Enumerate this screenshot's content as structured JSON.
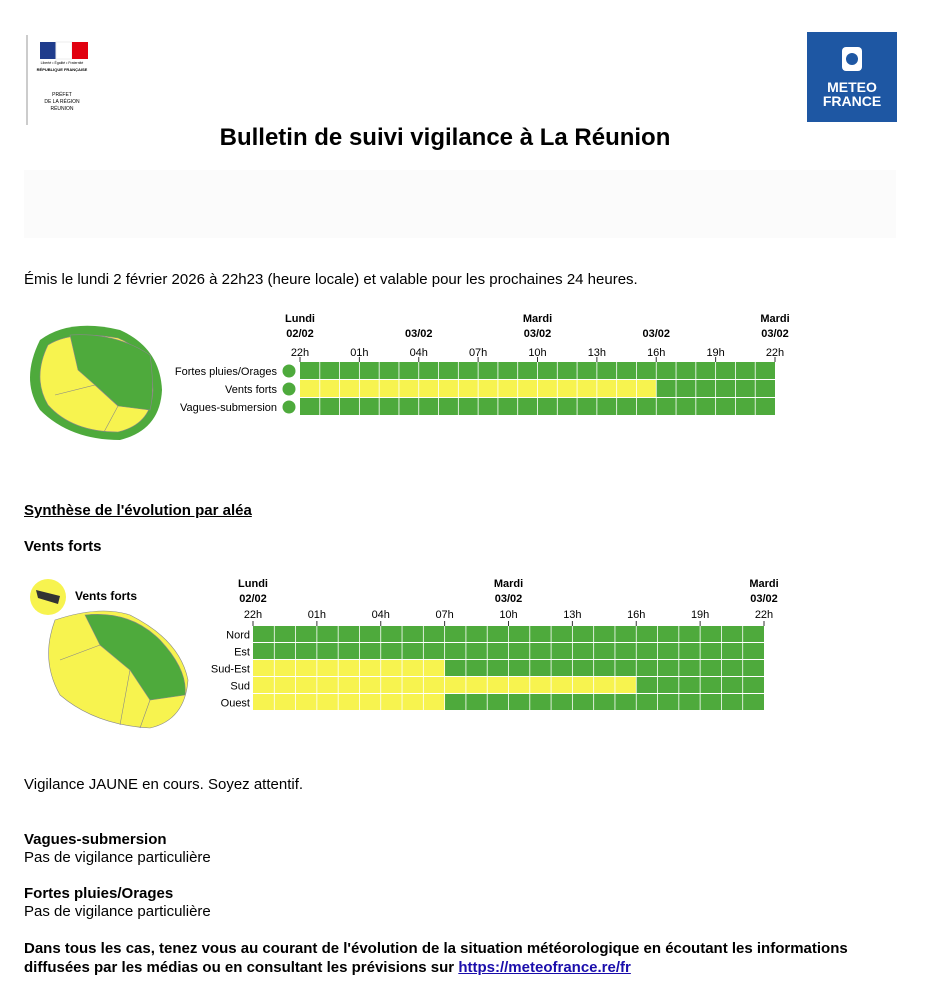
{
  "header": {
    "prefet": {
      "motto": "Liberté • Égalité • Fraternité",
      "republic": "RÉPUBLIQUE FRANÇAISE",
      "lines": [
        "PRÉFET",
        "DE LA RÉGION",
        "RÉUNION"
      ]
    },
    "logo": [
      "METEO",
      "FRANCE"
    ],
    "title": "Bulletin de suivi vigilance à La Réunion"
  },
  "issued": "Émis le lundi 2 février 2026 à 22h23 (heure locale) et valable pour les prochaines 24 heures.",
  "overview": {
    "hours": [
      "22h",
      "01h",
      "04h",
      "07h",
      "10h",
      "13h",
      "16h",
      "19h",
      "22h"
    ],
    "date_labels": [
      [
        "Lundi",
        "02/02"
      ],
      null,
      [
        "03/02"
      ],
      null,
      [
        "Mardi",
        "03/02"
      ],
      null,
      [
        "03/02"
      ],
      null,
      [
        "Mardi",
        "03/02"
      ]
    ],
    "total_cells": 24,
    "rows": [
      {
        "name": "Fortes pluies/Orages",
        "segments": [
          {
            "color": "#4eaa3c",
            "cells": 24
          }
        ]
      },
      {
        "name": "Vents forts",
        "segments": [
          {
            "color": "#f7f34f",
            "cells": 18
          },
          {
            "color": "#4eaa3c",
            "cells": 6
          }
        ]
      },
      {
        "name": "Vagues-submersion",
        "segments": [
          {
            "color": "#4eaa3c",
            "cells": 24
          }
        ]
      }
    ]
  },
  "synthesis": {
    "heading": "Synthèse de l'évolution par aléa",
    "wind": {
      "heading": "Vents forts",
      "legend": "Vents forts",
      "hours": [
        "22h",
        "01h",
        "04h",
        "07h",
        "10h",
        "13h",
        "16h",
        "19h",
        "22h"
      ],
      "date_labels": [
        [
          "Lundi",
          "02/02"
        ],
        null,
        null,
        null,
        [
          "Mardi",
          "03/02"
        ],
        null,
        null,
        null,
        [
          "Mardi",
          "03/02"
        ]
      ],
      "total_cells": 24,
      "rows": [
        {
          "name": "Nord",
          "segments": [
            {
              "color": "#4eaa3c",
              "cells": 24
            }
          ]
        },
        {
          "name": "Est",
          "segments": [
            {
              "color": "#4eaa3c",
              "cells": 24
            }
          ]
        },
        {
          "name": "Sud-Est",
          "segments": [
            {
              "color": "#f7f34f",
              "cells": 9
            },
            {
              "color": "#4eaa3c",
              "cells": 15
            }
          ]
        },
        {
          "name": "Sud",
          "segments": [
            {
              "color": "#f7f34f",
              "cells": 18
            },
            {
              "color": "#4eaa3c",
              "cells": 6
            }
          ]
        },
        {
          "name": "Ouest",
          "segments": [
            {
              "color": "#f7f34f",
              "cells": 9
            },
            {
              "color": "#4eaa3c",
              "cells": 15
            }
          ]
        }
      ],
      "status": "Vigilance JAUNE en cours. Soyez attentif."
    },
    "waves": {
      "heading": "Vagues-submersion",
      "text": "Pas de vigilance particulière"
    },
    "rain": {
      "heading": "Fortes pluies/Orages",
      "text": "Pas de vigilance particulière"
    }
  },
  "footer": {
    "text": "Dans tous les cas, tenez vous au courant de l'évolution de la situation météorologique en écoutant les informations diffusées par les médias ou en consultant les prévisions sur ",
    "link": "https://meteofrance.re/fr"
  }
}
